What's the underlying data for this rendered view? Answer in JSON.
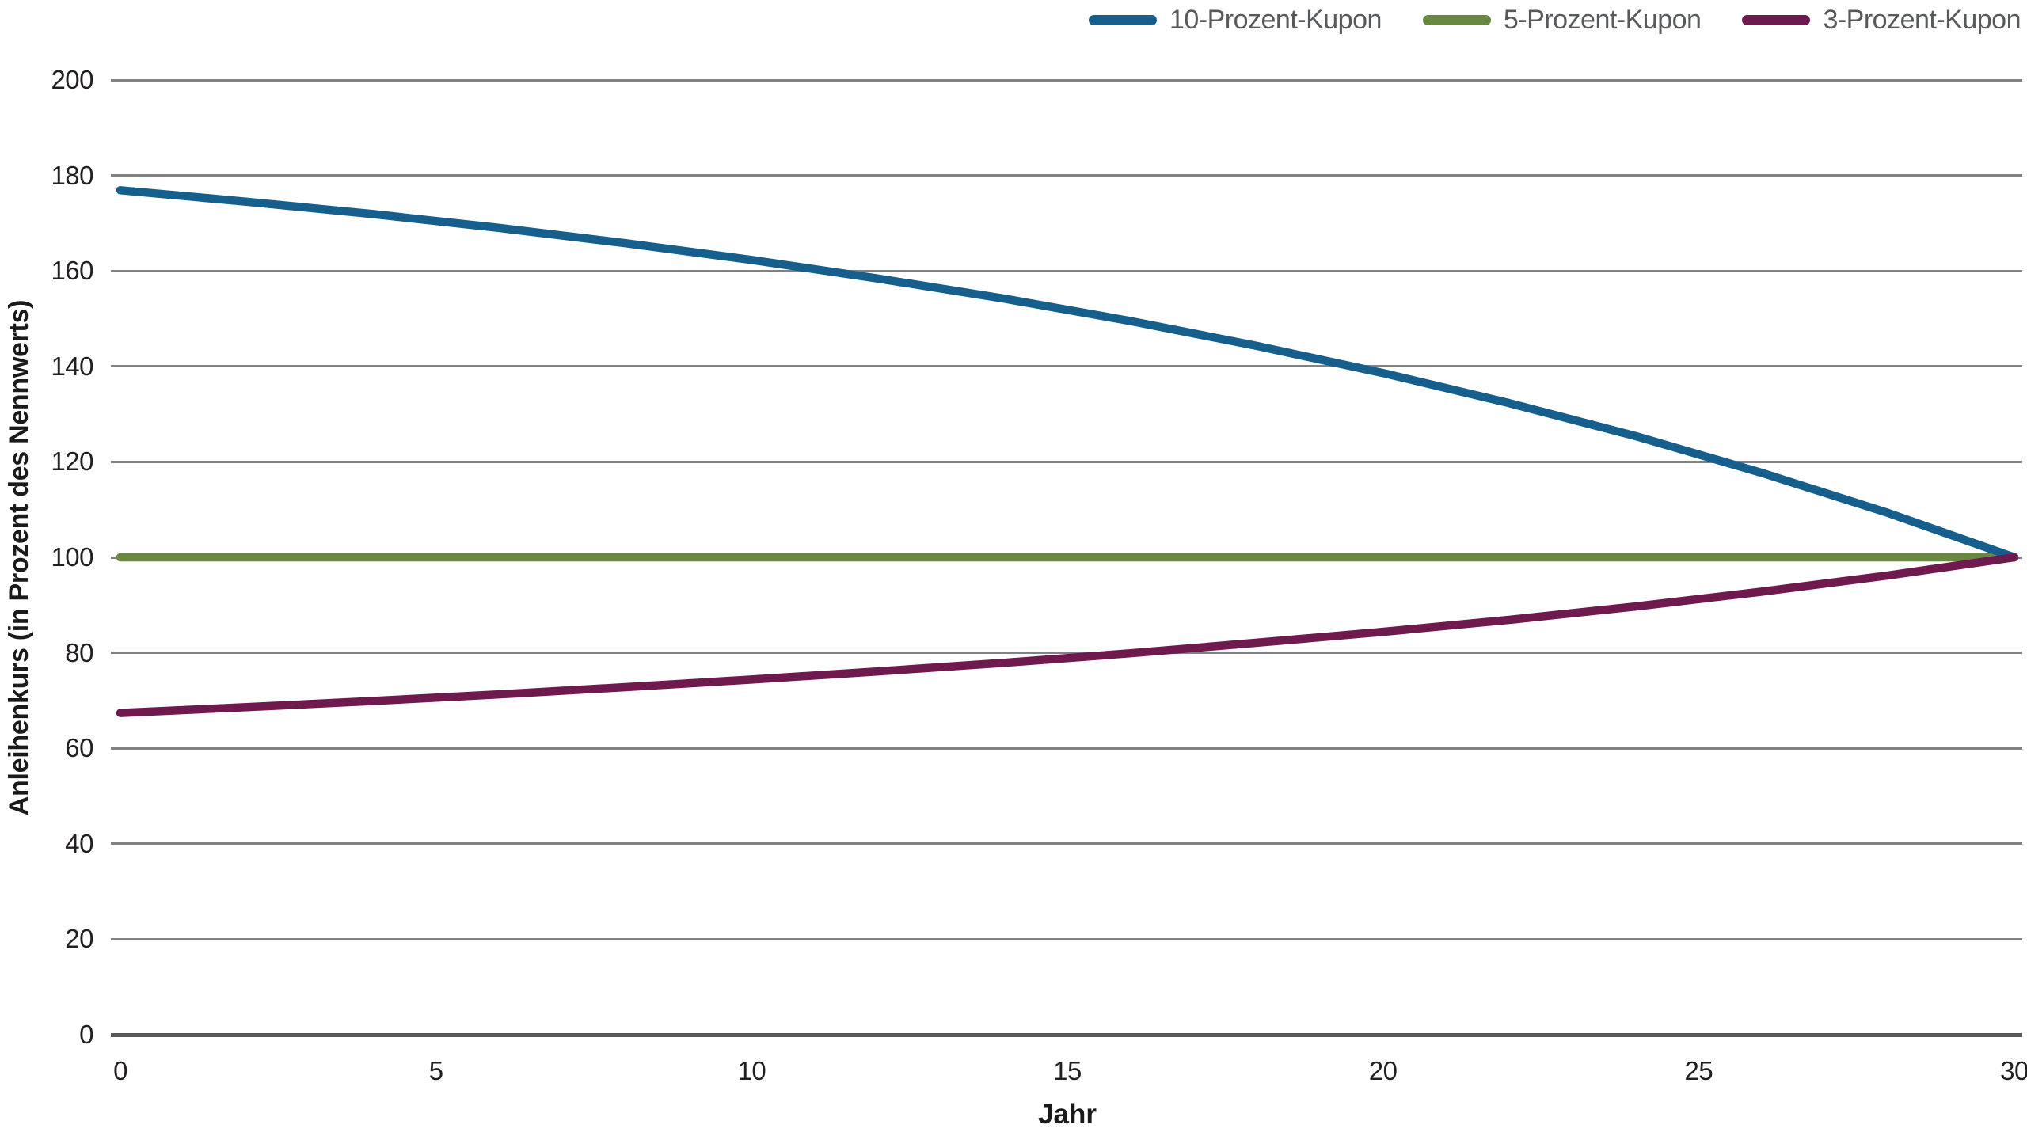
{
  "chart_data": {
    "type": "line",
    "title": "",
    "xlabel": "Jahr",
    "ylabel": "Anleihenkurs (in Prozent des Nennwerts)",
    "xlim": [
      0,
      30
    ],
    "ylim": [
      0,
      200
    ],
    "x_ticks": [
      0,
      5,
      10,
      15,
      20,
      25,
      30
    ],
    "y_ticks": [
      0,
      20,
      40,
      60,
      80,
      100,
      120,
      140,
      160,
      180,
      200
    ],
    "grid": "horizontal-only",
    "legend_position": "top-right",
    "x_years": [
      0,
      2,
      4,
      6,
      8,
      10,
      12,
      14,
      16,
      18,
      20,
      22,
      24,
      26,
      28,
      30
    ],
    "series": [
      {
        "name": "10-Prozent-Kupon",
        "color": "#165E8C",
        "values": [
          176.9,
          174.5,
          171.9,
          169.0,
          165.8,
          162.3,
          158.4,
          154.2,
          149.5,
          144.3,
          138.6,
          132.3,
          125.4,
          117.7,
          109.3,
          100.0
        ]
      },
      {
        "name": "5-Prozent-Kupon",
        "color": "#6A8940",
        "values": [
          100,
          100,
          100,
          100,
          100,
          100,
          100,
          100,
          100,
          100,
          100,
          100,
          100,
          100,
          100,
          100
        ]
      },
      {
        "name": "3-Prozent-Kupon",
        "color": "#6E1A4F",
        "values": [
          67.4,
          68.6,
          69.9,
          71.3,
          72.8,
          74.4,
          76.1,
          77.9,
          79.9,
          82.1,
          84.4,
          86.9,
          89.7,
          92.8,
          96.2,
          100.0
        ]
      }
    ]
  },
  "colors": {
    "background": "#FFFFFF",
    "gridline": "#808285",
    "axis_line": "#58595B",
    "tick_text": "#231F20",
    "legend_text": "#58595B"
  }
}
